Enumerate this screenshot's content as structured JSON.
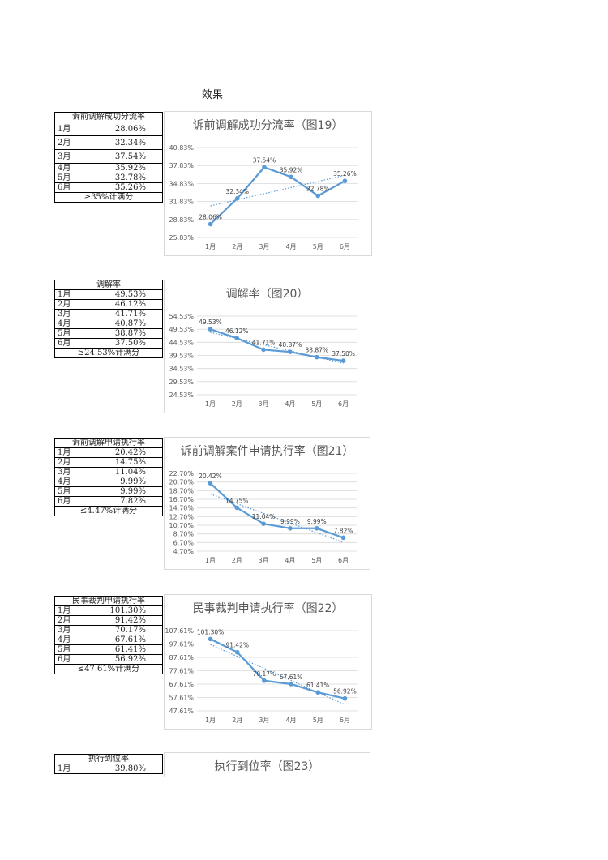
{
  "page": {
    "title": "效果"
  },
  "blocks": [
    {
      "table": {
        "header": "诉前调解成功分流率",
        "rows": [
          [
            "1月",
            "28.06%"
          ],
          [
            "2月",
            "32.34%"
          ],
          [
            "3月",
            "37.54%"
          ],
          [
            "4月",
            "35.92%"
          ],
          [
            "5月",
            "32.78%"
          ],
          [
            "6月",
            "35.26%"
          ]
        ],
        "footer": "≥35%计满分"
      }
    },
    {
      "table": {
        "header": "调解率",
        "rows": [
          [
            "1月",
            "49.53%"
          ],
          [
            "2月",
            "46.12%"
          ],
          [
            "3月",
            "41.71%"
          ],
          [
            "4月",
            "40.87%"
          ],
          [
            "5月",
            "38.87%"
          ],
          [
            "6月",
            "37.50%"
          ]
        ],
        "footer": "≥24.53%计满分"
      }
    },
    {
      "table": {
        "header": "诉前调解申请执行率",
        "rows": [
          [
            "1月",
            "20.42%"
          ],
          [
            "2月",
            "14.75%"
          ],
          [
            "3月",
            "11.04%"
          ],
          [
            "4月",
            "9.99%"
          ],
          [
            "5月",
            "9.99%"
          ],
          [
            "6月",
            "7.82%"
          ]
        ],
        "footer": "≤4.47%计满分"
      }
    },
    {
      "table": {
        "header": "民事裁判申请执行率",
        "rows": [
          [
            "1月",
            "101.30%"
          ],
          [
            "2月",
            "91.42%"
          ],
          [
            "3月",
            "70.17%"
          ],
          [
            "4月",
            "67.61%"
          ],
          [
            "5月",
            "61.41%"
          ],
          [
            "6月",
            "56.92%"
          ]
        ],
        "footer": "≤47.61%计满分"
      }
    },
    {
      "table": {
        "header": "执行到位率",
        "rows": [
          [
            "1月",
            "39.80%"
          ]
        ],
        "footer": ""
      }
    }
  ],
  "chart_data": [
    {
      "type": "line",
      "title": "诉前调解成功分流率（图19）",
      "categories": [
        "1月",
        "2月",
        "3月",
        "4月",
        "5月",
        "6月"
      ],
      "values": [
        28.06,
        32.34,
        37.54,
        35.92,
        32.78,
        35.26
      ],
      "labels": [
        "28.06%",
        "32.34%",
        "37.54%",
        "35.92%",
        "32.78%",
        "35.26%"
      ],
      "yticks": [
        "40.83%",
        "37.83%",
        "34.83%",
        "31.83%",
        "28.83%",
        "25.83%"
      ],
      "ylim": [
        25.83,
        40.83
      ],
      "trendline": true,
      "grid": true,
      "color": "#5b9bd5"
    },
    {
      "type": "line",
      "title": "调解率（图20）",
      "categories": [
        "1月",
        "2月",
        "3月",
        "4月",
        "5月",
        "6月"
      ],
      "values": [
        49.53,
        46.12,
        41.71,
        40.87,
        38.87,
        37.5
      ],
      "labels": [
        "49.53%",
        "46.12%",
        "41.71%",
        "40.87%",
        "38.87%",
        "37.50%"
      ],
      "yticks": [
        "54.53%",
        "49.53%",
        "44.53%",
        "39.53%",
        "34.53%",
        "29.53%",
        "24.53%"
      ],
      "ylim": [
        24.53,
        54.53
      ],
      "trendline": true,
      "grid": true,
      "color": "#5b9bd5"
    },
    {
      "type": "line",
      "title": "诉前调解案件申请执行率（图21）",
      "categories": [
        "1月",
        "2月",
        "3月",
        "4月",
        "5月",
        "6月"
      ],
      "values": [
        20.42,
        14.75,
        11.04,
        9.99,
        9.99,
        7.82
      ],
      "labels": [
        "20.42%",
        "14.75%",
        "11.04%",
        "9.99%",
        "9.99%",
        "7.82%"
      ],
      "yticks": [
        "22.70%",
        "20.70%",
        "18.70%",
        "16.70%",
        "14.70%",
        "12.70%",
        "10.70%",
        "8.70%",
        "6.70%",
        "4.70%"
      ],
      "ylim": [
        4.7,
        22.7
      ],
      "trendline": true,
      "grid": true,
      "color": "#5b9bd5"
    },
    {
      "type": "line",
      "title": "民事裁判申请执行率（图22）",
      "categories": [
        "1月",
        "2月",
        "3月",
        "4月",
        "5月",
        "6月"
      ],
      "values": [
        101.3,
        91.42,
        70.17,
        67.61,
        61.41,
        56.92
      ],
      "labels": [
        "101.30%",
        "91.42%",
        "70.17%",
        "67.61%",
        "61.41%",
        "56.92%"
      ],
      "yticks": [
        "107.61%",
        "97.61%",
        "87.61%",
        "77.61%",
        "67.61%",
        "57.61%",
        "47.61%"
      ],
      "ylim": [
        47.61,
        107.61
      ],
      "trendline": true,
      "grid": true,
      "color": "#5b9bd5"
    },
    {
      "type": "line",
      "title": "执行到位率（图23）",
      "categories": [],
      "values": [],
      "labels": [],
      "yticks": [],
      "trendline": false,
      "grid": false,
      "color": "#5b9bd5"
    }
  ]
}
